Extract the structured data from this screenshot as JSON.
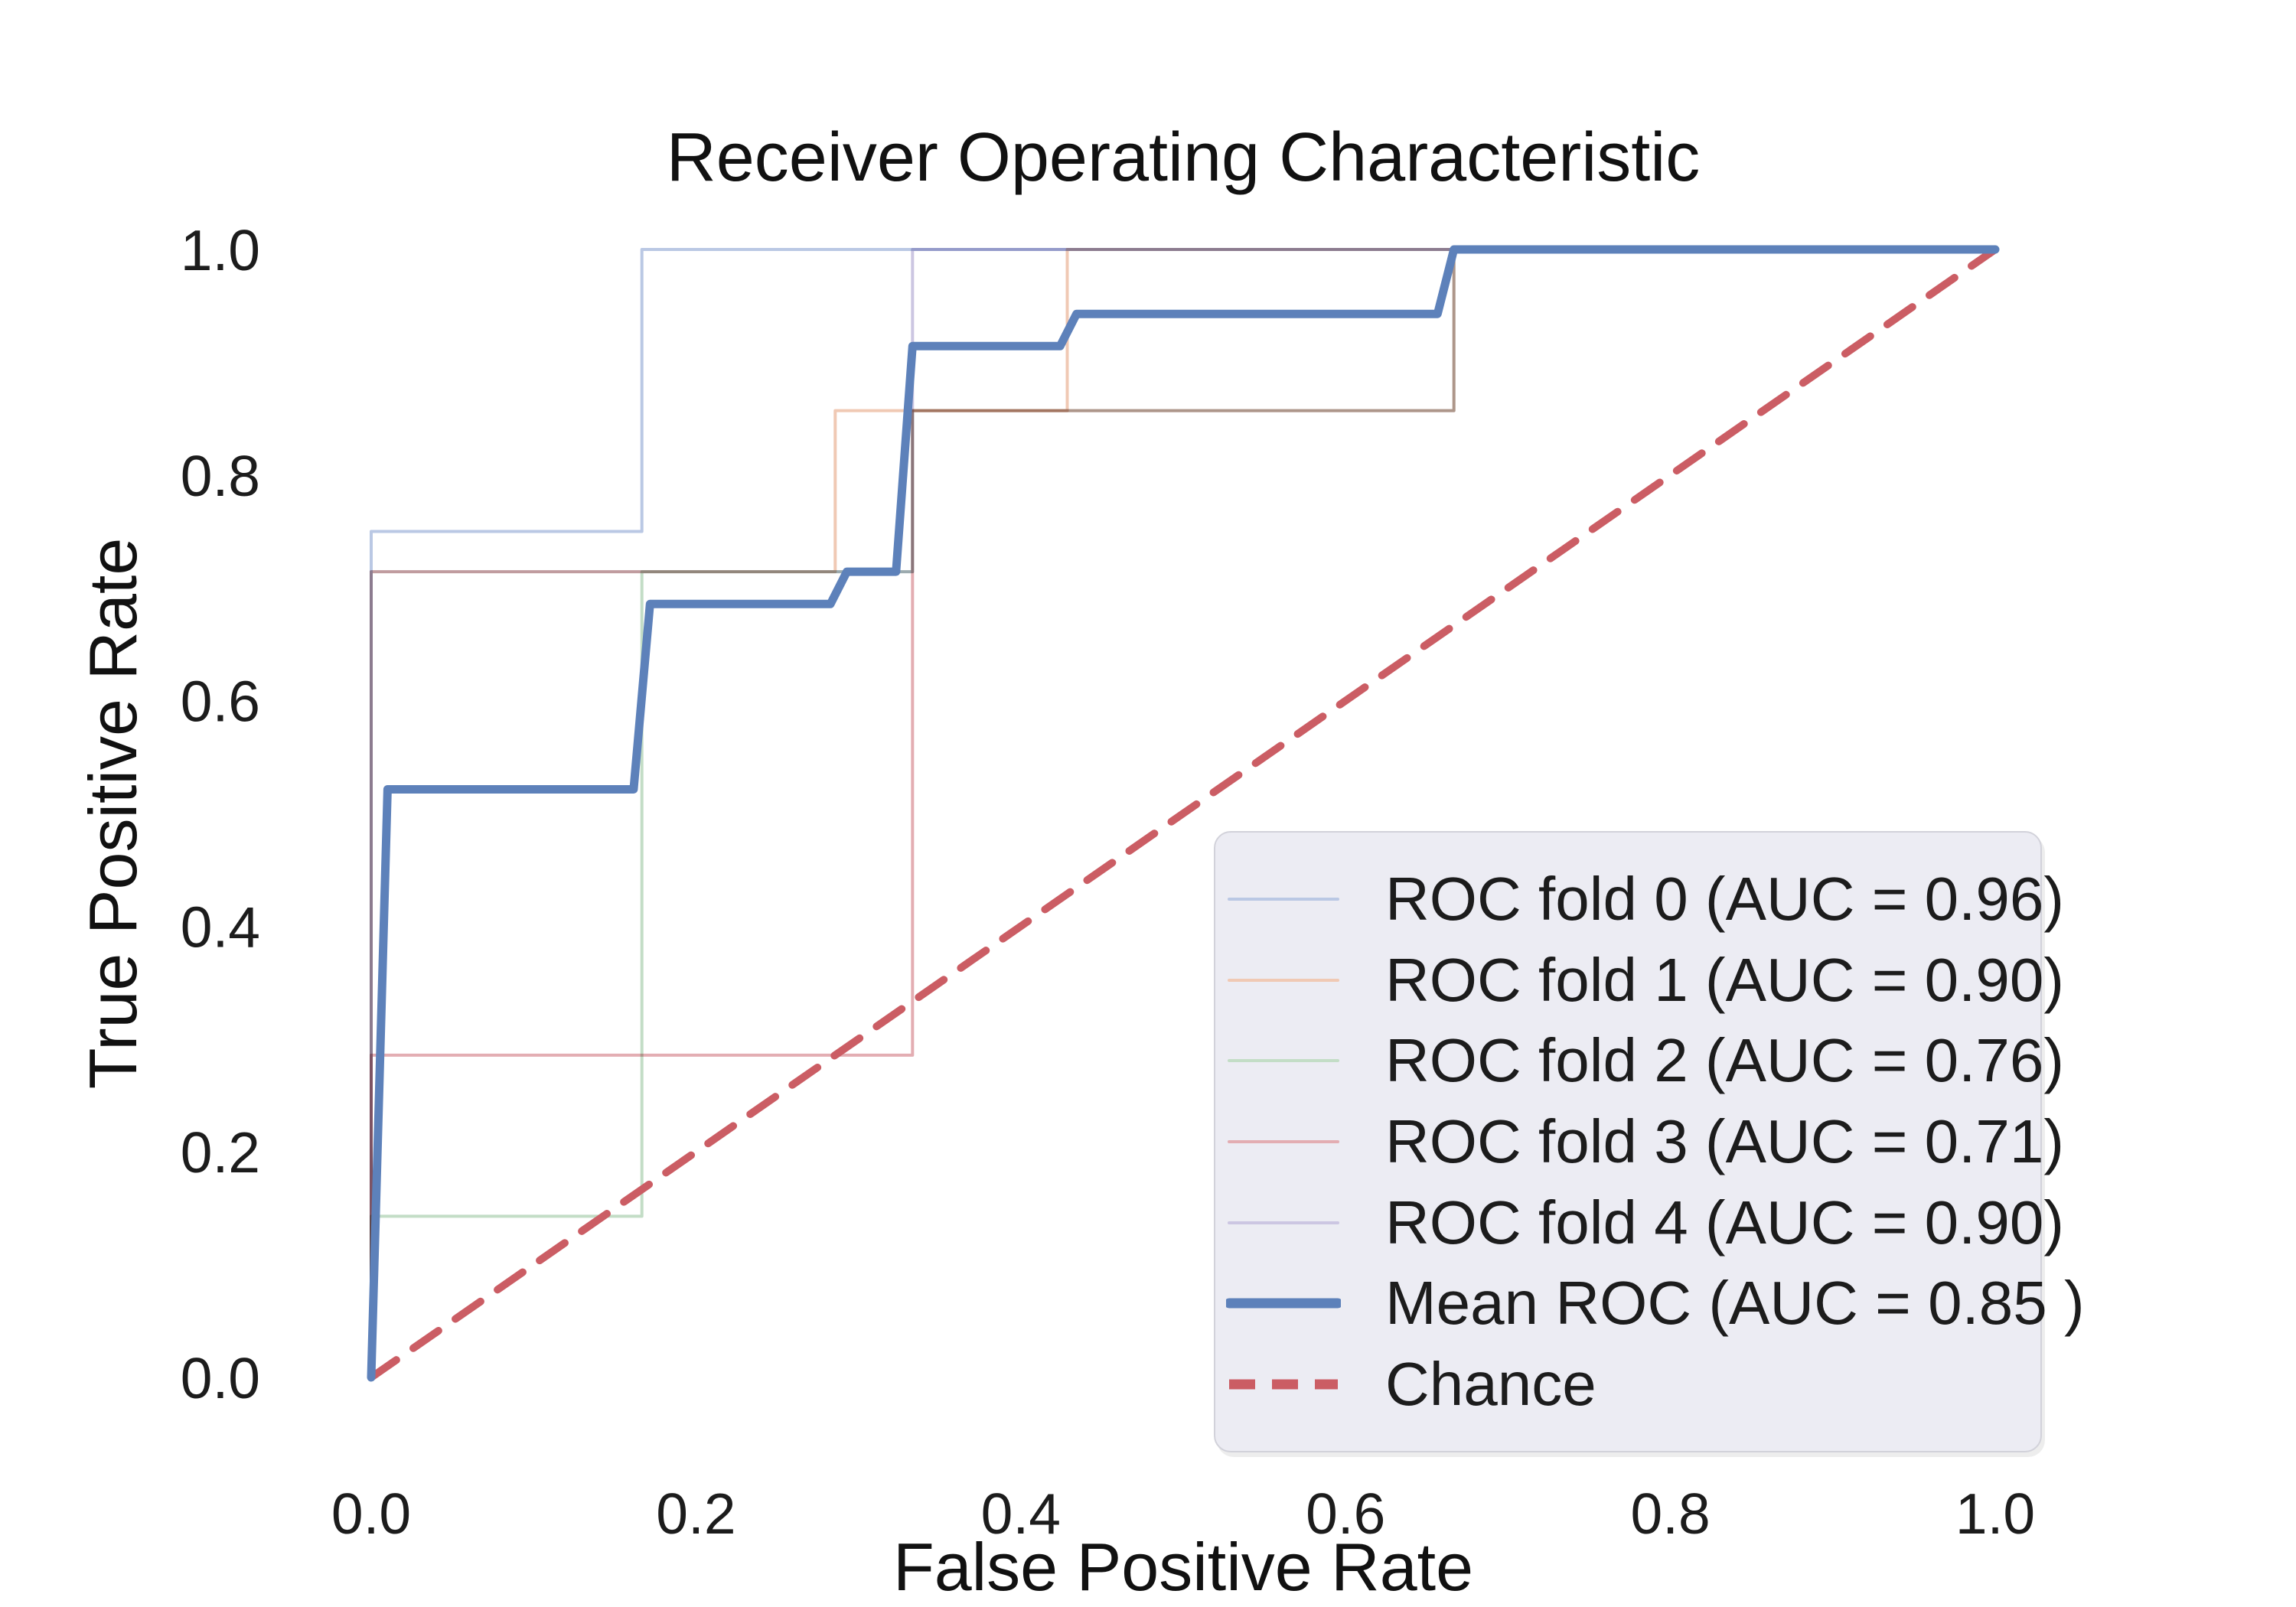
{
  "title": "Receiver Operating Characteristic",
  "axes": {
    "xlabel": "False Positive Rate",
    "ylabel": "True Positive Rate",
    "x_ticks": [
      {
        "label": "0.0",
        "value": 0.0
      },
      {
        "label": "0.2",
        "value": 0.2
      },
      {
        "label": "0.4",
        "value": 0.4
      },
      {
        "label": "0.6",
        "value": 0.6
      },
      {
        "label": "0.8",
        "value": 0.8
      },
      {
        "label": "1.0",
        "value": 1.0
      }
    ],
    "y_ticks": [
      {
        "label": "0.0",
        "value": 0.0
      },
      {
        "label": "0.2",
        "value": 0.2
      },
      {
        "label": "0.4",
        "value": 0.4
      },
      {
        "label": "0.6",
        "value": 0.6
      },
      {
        "label": "0.8",
        "value": 0.8
      },
      {
        "label": "1.0",
        "value": 1.0
      }
    ],
    "xlim": [
      0.0,
      1.0
    ],
    "ylim": [
      0.0,
      1.0
    ],
    "grid": false
  },
  "colors": {
    "fold0": "#bac8e4",
    "fold1": "#f0c9b4",
    "fold2": "#c3ddc6",
    "fold3": "#e3adb2",
    "fold4": "#ccc6e2",
    "mean": "#5d81ba",
    "chance": "#cb5d64",
    "text": "#1c1c1c",
    "legend_bg": "#ececf3"
  },
  "chart_data": {
    "type": "line",
    "title": "Receiver Operating Characteristic",
    "xlabel": "False Positive Rate",
    "ylabel": "True Positive Rate",
    "xlim": [
      0.0,
      1.0
    ],
    "ylim": [
      0.0,
      1.0
    ],
    "legend_position": "lower right",
    "series": [
      {
        "name": "ROC fold 0 (AUC = 0.96)",
        "auc": 0.96,
        "color": "#bac8e4",
        "width": 4,
        "dash": null,
        "blend": true,
        "points": [
          [
            0,
            0
          ],
          [
            0,
            0.75
          ],
          [
            0.1667,
            0.75
          ],
          [
            0.1667,
            1.0
          ],
          [
            1.0,
            1.0
          ]
        ]
      },
      {
        "name": "ROC fold 1 (AUC = 0.90)",
        "auc": 0.9,
        "color": "#f0c9b4",
        "width": 4,
        "dash": null,
        "blend": true,
        "points": [
          [
            0,
            0
          ],
          [
            0,
            0.7143
          ],
          [
            0.2857,
            0.7143
          ],
          [
            0.2857,
            0.8571
          ],
          [
            0.4286,
            0.8571
          ],
          [
            0.4286,
            1.0
          ],
          [
            1.0,
            1.0
          ]
        ]
      },
      {
        "name": "ROC fold 2 (AUC = 0.76)",
        "auc": 0.76,
        "color": "#c3ddc6",
        "width": 4,
        "dash": null,
        "blend": true,
        "points": [
          [
            0,
            0
          ],
          [
            0,
            0.1429
          ],
          [
            0.1667,
            0.1429
          ],
          [
            0.1667,
            0.7143
          ],
          [
            0.3333,
            0.7143
          ],
          [
            0.3333,
            0.8571
          ],
          [
            0.6667,
            0.8571
          ],
          [
            0.6667,
            1.0
          ],
          [
            1.0,
            1.0
          ]
        ]
      },
      {
        "name": "ROC fold 3 (AUC = 0.71)",
        "auc": 0.71,
        "color": "#e3adb2",
        "width": 4,
        "dash": null,
        "blend": true,
        "points": [
          [
            0,
            0
          ],
          [
            0,
            0.2857
          ],
          [
            0.3333,
            0.2857
          ],
          [
            0.3333,
            0.8571
          ],
          [
            0.6667,
            0.8571
          ],
          [
            0.6667,
            1.0
          ],
          [
            1.0,
            1.0
          ]
        ]
      },
      {
        "name": "ROC fold 4 (AUC = 0.90)",
        "auc": 0.9,
        "color": "#ccc6e2",
        "width": 4,
        "dash": null,
        "blend": true,
        "points": [
          [
            0,
            0
          ],
          [
            0,
            0.7143
          ],
          [
            0.3333,
            0.7143
          ],
          [
            0.3333,
            1.0
          ],
          [
            1.0,
            1.0
          ]
        ]
      },
      {
        "name": "Chance",
        "auc": 0.5,
        "color": "#cb5d64",
        "width": 10,
        "dash": "40 27",
        "blend": false,
        "points": [
          [
            0,
            0
          ],
          [
            1.0,
            1.0
          ]
        ]
      },
      {
        "name": "Mean ROC (AUC = 0.85 )",
        "auc": 0.85,
        "color": "#5d81ba",
        "width": 11,
        "dash": null,
        "blend": false,
        "points": [
          [
            0,
            0
          ],
          [
            0.0101,
            0.5214
          ],
          [
            0.1616,
            0.5214
          ],
          [
            0.1717,
            0.6857
          ],
          [
            0.2828,
            0.6857
          ],
          [
            0.2929,
            0.7143
          ],
          [
            0.3232,
            0.7143
          ],
          [
            0.3333,
            0.9143
          ],
          [
            0.4242,
            0.9143
          ],
          [
            0.4343,
            0.9429
          ],
          [
            0.6566,
            0.9429
          ],
          [
            0.6667,
            1.0
          ],
          [
            1.0,
            1.0
          ]
        ]
      }
    ]
  },
  "legend": {
    "entries": [
      {
        "label": "ROC fold 0 (AUC = 0.96)",
        "color": "#bac8e4",
        "thickness": 4,
        "dash": null
      },
      {
        "label": "ROC fold 1 (AUC = 0.90)",
        "color": "#f0c9b4",
        "thickness": 4,
        "dash": null
      },
      {
        "label": "ROC fold 2 (AUC = 0.76)",
        "color": "#c3ddc6",
        "thickness": 4,
        "dash": null
      },
      {
        "label": "ROC fold 3 (AUC = 0.71)",
        "color": "#e3adb2",
        "thickness": 4,
        "dash": null
      },
      {
        "label": "ROC fold 4 (AUC = 0.90)",
        "color": "#ccc6e2",
        "thickness": 4,
        "dash": null
      },
      {
        "label": "Mean ROC (AUC = 0.85 )",
        "color": "#5d81ba",
        "thickness": 13,
        "dash": null
      },
      {
        "label": "Chance",
        "color": "#cb5d64",
        "thickness": 13,
        "dash": "34 22"
      }
    ]
  }
}
